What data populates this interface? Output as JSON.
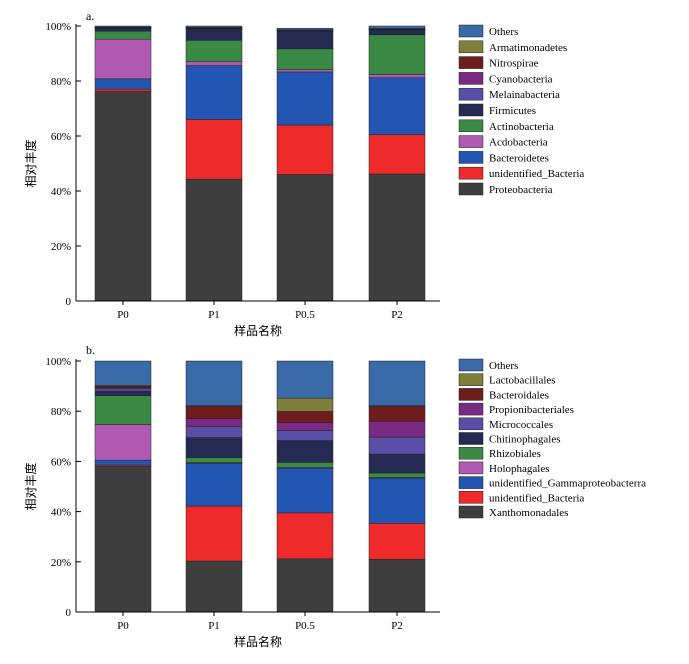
{
  "chart_data": [
    {
      "type": "stacked-bar",
      "panel_label": "a.",
      "xlabel": "样品名称",
      "ylabel": "相对丰度",
      "ylim": [
        0,
        100
      ],
      "yticks": [
        "0",
        "20%",
        "40%",
        "60%",
        "80%",
        "100%"
      ],
      "categories": [
        "P0",
        "P1",
        "P0.5",
        "P2"
      ],
      "series": [
        {
          "name": "Proteobacteria",
          "color": "#3e3e3e",
          "values": [
            76.2,
            44.3,
            46.0,
            46.2
          ]
        },
        {
          "name": "unidentified_Bacteria",
          "color": "#ee2a2a",
          "values": [
            0.8,
            21.7,
            18.0,
            14.3
          ]
        },
        {
          "name": "Bacteroidetes",
          "color": "#2355b2",
          "values": [
            3.8,
            19.6,
            19.3,
            20.7
          ]
        },
        {
          "name": "Acdobacteria",
          "color": "#b05ab4",
          "values": [
            14.4,
            1.4,
            0.8,
            1.1
          ]
        },
        {
          "name": "Actinobacteria",
          "color": "#3a8a46",
          "values": [
            2.9,
            7.8,
            7.6,
            14.5
          ]
        },
        {
          "name": "Firmicutes",
          "color": "#252a52",
          "values": [
            1.1,
            3.9,
            6.5,
            1.8
          ]
        },
        {
          "name": "Melainabacteria",
          "color": "#5a4fa6",
          "values": [
            0.1,
            0.2,
            0.1,
            0.2
          ]
        },
        {
          "name": "Cyanobacteria",
          "color": "#7b2a84",
          "values": [
            0.1,
            0.2,
            0.1,
            0.1
          ]
        },
        {
          "name": "Nitrospirae",
          "color": "#6e1c1c",
          "values": [
            0.1,
            0.2,
            0.1,
            0.1
          ]
        },
        {
          "name": "Armatimonadetes",
          "color": "#7f7f3c",
          "values": [
            0.1,
            0.2,
            0.1,
            0.1
          ]
        },
        {
          "name": "Others",
          "color": "#3a6aa8",
          "values": [
            0.4,
            0.5,
            0.6,
            0.9
          ]
        }
      ]
    },
    {
      "type": "stacked-bar",
      "panel_label": "b.",
      "xlabel": "样品名称",
      "ylabel": "相对丰度",
      "ylim": [
        0,
        100
      ],
      "yticks": [
        "0",
        "20%",
        "40%",
        "60%",
        "80%",
        "100%"
      ],
      "categories": [
        "P0",
        "P1",
        "P0.5",
        "P2"
      ],
      "series": [
        {
          "name": "Xanthomonadales",
          "color": "#3e3e3e",
          "values": [
            58.0,
            20.3,
            21.2,
            21.0
          ]
        },
        {
          "name": "unidentified_Bacteria",
          "color": "#ee2a2a",
          "values": [
            0.5,
            21.9,
            18.3,
            14.3
          ]
        },
        {
          "name": "unidentified_Gammaproteobacterra",
          "color": "#2355b2",
          "values": [
            2.0,
            17.0,
            17.8,
            18.0
          ]
        },
        {
          "name": "Holophagales",
          "color": "#b05ab4",
          "values": [
            14.2,
            0.3,
            0.3,
            0.3
          ]
        },
        {
          "name": "Rhizobiales",
          "color": "#3a8a46",
          "values": [
            11.5,
            2.0,
            2.0,
            1.8
          ]
        },
        {
          "name": "Chitinophagales",
          "color": "#252a52",
          "values": [
            1.8,
            8.0,
            8.7,
            7.5
          ]
        },
        {
          "name": "Micrococcales",
          "color": "#5a4fa6",
          "values": [
            0.9,
            4.3,
            4.0,
            6.8
          ]
        },
        {
          "name": "Propionibacteriales",
          "color": "#7b2a84",
          "values": [
            0.5,
            3.2,
            3.2,
            6.3
          ]
        },
        {
          "name": "Bacteroidales",
          "color": "#6e1c1c",
          "values": [
            0.5,
            5.0,
            4.4,
            6.0
          ]
        },
        {
          "name": "Lactobacillales",
          "color": "#7f7f3c",
          "values": [
            0.4,
            0.2,
            5.3,
            0.2
          ]
        },
        {
          "name": "Others",
          "color": "#3a6aa8",
          "values": [
            9.7,
            17.8,
            14.8,
            17.8
          ]
        }
      ]
    }
  ]
}
